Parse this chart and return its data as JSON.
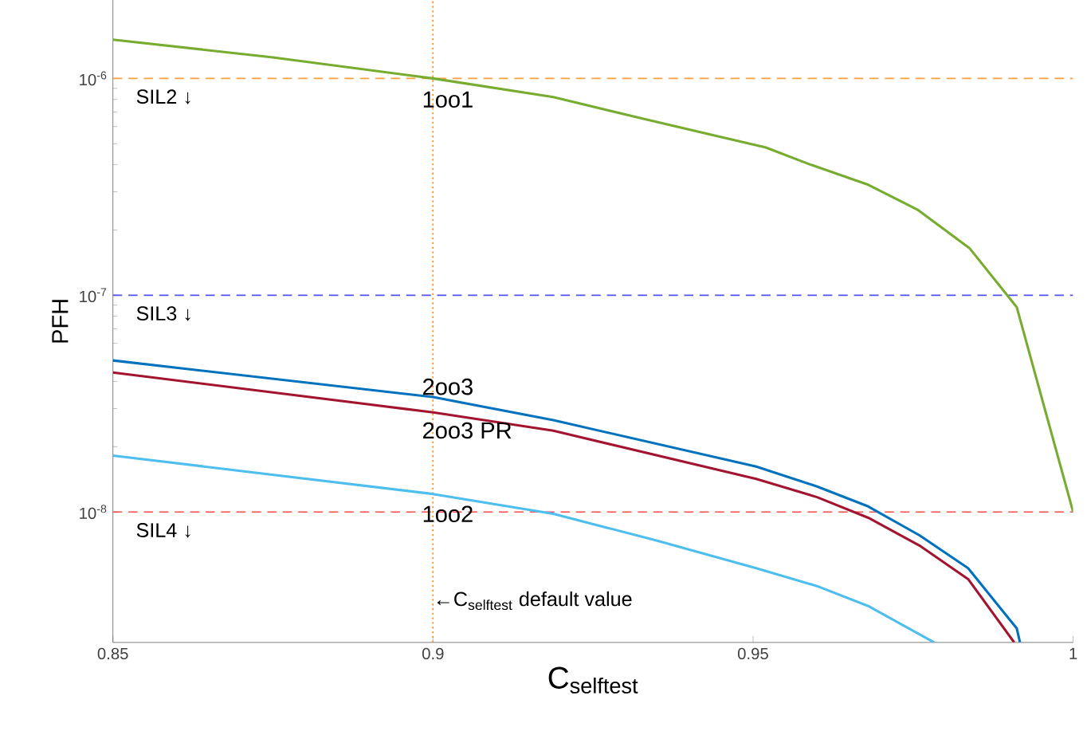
{
  "chart_data": {
    "type": "line",
    "xlabel": "C$_{selftest}$",
    "ylabel": "PFH",
    "log": "y",
    "xlim": [
      0.85,
      1.0
    ],
    "ylim": [
      2.5e-09,
      2.3e-06
    ],
    "xticks": [
      0.85,
      0.9,
      0.95,
      1
    ],
    "yticks": [
      {
        "value": 1e-08,
        "label": "10$^{-8}$"
      },
      {
        "value": 1e-07,
        "label": "10$^{-7}$"
      },
      {
        "value": 1e-06,
        "label": "10$^{-6}$"
      }
    ],
    "series": [
      {
        "name": "1oo1",
        "color": "#77ac30",
        "x": [
          0.85,
          0.875,
          0.9,
          0.9188,
          0.933,
          0.944,
          0.952,
          0.959,
          0.968,
          0.9757,
          0.9838,
          0.9912,
          1.0
        ],
        "values": [
          1.51e-06,
          1.25e-06,
          1e-06,
          8.2e-07,
          6.5e-07,
          5.45e-07,
          4.8e-07,
          4e-07,
          3.23e-07,
          2.48e-07,
          1.65e-07,
          8.8e-08,
          1e-08
        ]
      },
      {
        "name": "2oo3",
        "color": "#0072bd",
        "x": [
          0.85,
          0.9,
          0.9188,
          0.9505,
          0.96,
          0.968,
          0.976,
          0.9836,
          0.9912,
          0.9917
        ],
        "values": [
          5e-08,
          3.39e-08,
          2.65e-08,
          1.62e-08,
          1.31e-08,
          1.06e-08,
          7.8e-09,
          5.5e-09,
          2.9e-09,
          2.5e-09
        ]
      },
      {
        "name": "2oo3 PR",
        "color": "#a2142f",
        "x": [
          0.85,
          0.9,
          0.9188,
          0.9505,
          0.96,
          0.968,
          0.976,
          0.9836,
          0.9908
        ],
        "values": [
          4.4e-08,
          2.88e-08,
          2.37e-08,
          1.42e-08,
          1.17e-08,
          9.4e-09,
          7e-09,
          4.9e-09,
          2.5e-09
        ]
      },
      {
        "name": "1oo2",
        "color": "#4dbeee",
        "x": [
          0.85,
          0.9,
          0.9188,
          0.9348,
          0.9505,
          0.96,
          0.968,
          0.9783
        ],
        "values": [
          1.82e-08,
          1.21e-08,
          9.8e-09,
          7.4e-09,
          5.5e-09,
          4.55e-09,
          3.68e-09,
          2.5e-09
        ]
      }
    ],
    "ref_lines": [
      {
        "axis": "y",
        "value": 1e-06,
        "label": "SIL2 ↓",
        "color": "#ffa040",
        "line_style": "dashed"
      },
      {
        "axis": "y",
        "value": 1e-07,
        "label": "SIL3 ↓",
        "color": "#5050f0",
        "line_style": "dashed"
      },
      {
        "axis": "y",
        "value": 1e-08,
        "label": "SIL4 ↓",
        "color": "#ff5050",
        "line_style": "dashed"
      },
      {
        "axis": "x",
        "value": 0.9,
        "label": "←C$_{selftest}$ default value",
        "color": "#ff9020",
        "line_style": "dotted"
      }
    ]
  }
}
